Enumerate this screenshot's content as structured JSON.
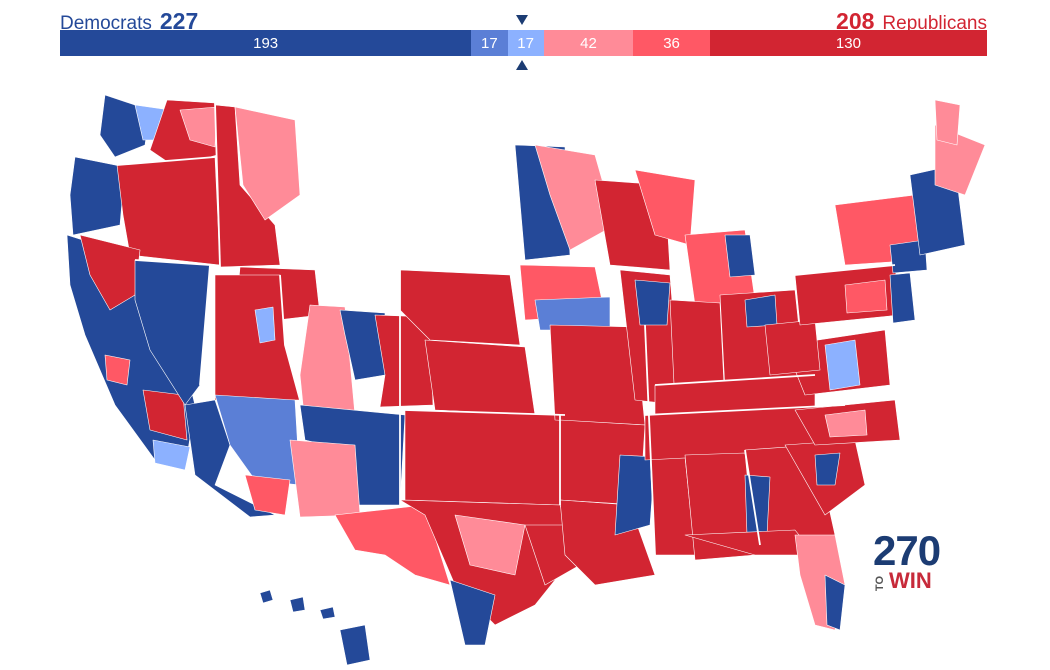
{
  "header": {
    "dem_label": "Democrats",
    "dem_total": "227",
    "rep_label": "Republicans",
    "rep_total": "208"
  },
  "bar": {
    "segments": [
      {
        "name": "safe-dem",
        "value": 193,
        "label": "193",
        "color": "#244999"
      },
      {
        "name": "likely-dem",
        "value": 17,
        "label": "17",
        "color": "#5b7fd6"
      },
      {
        "name": "leans-dem",
        "value": 17,
        "label": "17",
        "color": "#8cb1ff"
      },
      {
        "name": "leans-rep",
        "value": 42,
        "label": "42",
        "color": "#ff8b98"
      },
      {
        "name": "likely-rep",
        "value": 36,
        "label": "36",
        "color": "#ff5865"
      },
      {
        "name": "safe-rep",
        "value": 130,
        "label": "130",
        "color": "#d22532"
      }
    ]
  },
  "logo": {
    "num": "270",
    "to": "TO",
    "win": "WIN"
  },
  "colors": {
    "safe_dem": "#244999",
    "likely_dem": "#5b7fd6",
    "lean_dem": "#8cb1ff",
    "lean_rep": "#ff8b98",
    "likely_rep": "#ff5865",
    "safe_rep": "#d22532"
  }
}
